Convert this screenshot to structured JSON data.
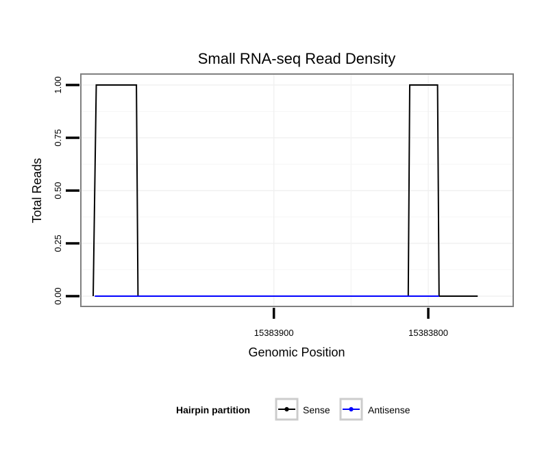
{
  "chart_data": {
    "type": "line",
    "title": "Small RNA-seq Read Density",
    "xlabel": "Genomic Position",
    "ylabel": "Total Reads",
    "ylim": [
      0,
      1
    ],
    "y_ticks": [
      0,
      0.25,
      0.5,
      0.75,
      1
    ],
    "y_tick_labels": [
      "0.00",
      "0.25",
      "0.50",
      "0.75",
      "1.00"
    ],
    "x_reversed": true,
    "xlim": [
      15384025,
      15383745
    ],
    "x_ticks": [
      15383900,
      15383800
    ],
    "x_tick_labels": [
      "15383900",
      "15383800"
    ],
    "grid": true,
    "legend": {
      "title": "Hairpin partition",
      "placement": "bottom",
      "entries": [
        {
          "name": "Sense",
          "color": "#000000"
        },
        {
          "name": "Antisense",
          "color": "#0000ff"
        }
      ]
    },
    "series": [
      {
        "name": "Sense",
        "color": "#000000",
        "points": [
          [
            15384017,
            0
          ],
          [
            15384015,
            1
          ],
          [
            15383989,
            1
          ],
          [
            15383988,
            0
          ],
          [
            15383813,
            0
          ],
          [
            15383812,
            1
          ],
          [
            15383794,
            1
          ],
          [
            15383793,
            0
          ],
          [
            15383768,
            0
          ]
        ]
      },
      {
        "name": "Antisense",
        "color": "#0000ff",
        "points": [
          [
            15384016,
            0
          ],
          [
            15383989,
            0
          ],
          [
            15383812,
            0
          ],
          [
            15383793,
            0
          ]
        ]
      }
    ]
  }
}
